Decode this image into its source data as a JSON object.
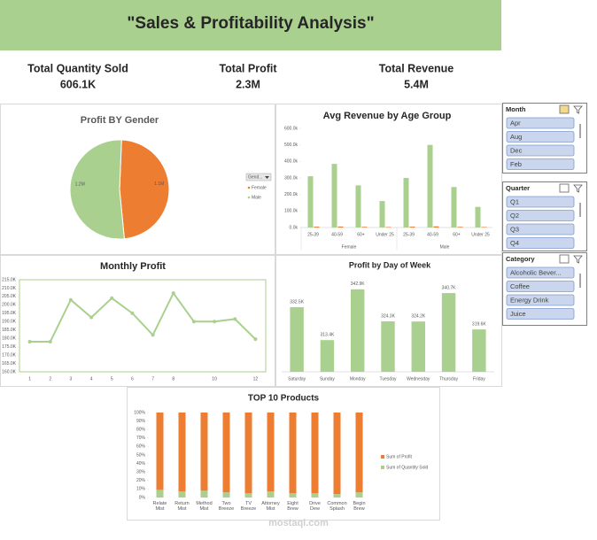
{
  "header": {
    "title": "\"Sales & Profitability Analysis\""
  },
  "kpis": [
    {
      "label": "Total Quantity Sold",
      "value": "606.1K"
    },
    {
      "label": "Total Profit",
      "value": "2.3M"
    },
    {
      "label": "Total Revenue",
      "value": "5.4M"
    }
  ],
  "slicers": [
    {
      "title": "Month",
      "items": [
        "Apr",
        "Aug",
        "Dec",
        "Feb"
      ]
    },
    {
      "title": "Quarter",
      "items": [
        "Q1",
        "Q2",
        "Q3",
        "Q4"
      ]
    },
    {
      "title": "Category",
      "items": [
        "Alcoholic Bever...",
        "Coffee",
        "Energy Drink",
        "Juice"
      ]
    }
  ],
  "watermark": "mostaql.com",
  "chart_data": [
    {
      "type": "pie",
      "title": "Profit BY Gender",
      "legend_title": "Gend...",
      "categories": [
        "Female",
        "Male"
      ],
      "values": [
        1.1,
        1.2
      ],
      "value_labels": [
        "1.1M",
        "1.2M"
      ],
      "colors": [
        "#ed7d31",
        "#a9d08e"
      ],
      "legend": "right"
    },
    {
      "type": "bar",
      "title": "Avg Revenue by Age Group",
      "categories": [
        "25-39",
        "40-59",
        "60+",
        "Under 25",
        "25-39",
        "40-59",
        "60+",
        "Under 25"
      ],
      "groups": [
        "Female",
        "Male"
      ],
      "series": [
        {
          "color": "#a9d08e",
          "values": [
            310,
            385,
            255,
            160,
            300,
            500,
            245,
            125
          ]
        },
        {
          "color": "#ed7d31",
          "values": [
            5,
            6,
            4,
            3,
            5,
            7,
            4,
            3
          ]
        }
      ],
      "ylim": [
        0,
        600
      ],
      "yticks": [
        {
          "value": 0,
          "label": "0.0k"
        },
        {
          "value": 100,
          "label": "100.0k"
        },
        {
          "value": 200,
          "label": "200.0k"
        },
        {
          "value": 300,
          "label": "300.0k"
        },
        {
          "value": 400,
          "label": "400.0k"
        },
        {
          "value": 500,
          "label": "500.0k"
        },
        {
          "value": 600,
          "label": "600.0k"
        }
      ]
    },
    {
      "type": "line",
      "title": "Monthly Profit",
      "x": [
        1,
        2,
        3,
        4,
        5,
        6,
        7,
        8,
        9,
        10,
        11,
        12
      ],
      "values": [
        178,
        178,
        203,
        192.5,
        204,
        195,
        182,
        207,
        190,
        190,
        191.5,
        179.5
      ],
      "color": "#a9d08e",
      "xlim": [
        0.5,
        12.5
      ],
      "xticks": [
        1,
        2,
        3,
        4,
        5,
        6,
        7,
        8,
        10,
        12
      ],
      "ylim": [
        160,
        215
      ],
      "yticks": [
        {
          "value": 160,
          "label": "160.0K"
        },
        {
          "value": 165,
          "label": "165.0K"
        },
        {
          "value": 170,
          "label": "170.0K"
        },
        {
          "value": 175,
          "label": "175.0K"
        },
        {
          "value": 180,
          "label": "180.0K"
        },
        {
          "value": 185,
          "label": "185.0K"
        },
        {
          "value": 190,
          "label": "190.0K"
        },
        {
          "value": 195,
          "label": "195.0K"
        },
        {
          "value": 200,
          "label": "200.0K"
        },
        {
          "value": 205,
          "label": "205.0K"
        },
        {
          "value": 210,
          "label": "210.0K"
        },
        {
          "value": 215,
          "label": "215.0K"
        }
      ]
    },
    {
      "type": "bar",
      "title": "Profit by Day of Week",
      "categories": [
        "Saturday",
        "Sunday",
        "Monday",
        "Tuesday",
        "Wednesday",
        "Thursday",
        "Friday"
      ],
      "values": [
        332.5,
        313.4,
        342.9,
        324.3,
        324.2,
        340.7,
        319.6
      ],
      "value_labels": [
        "332.5K",
        "313.4K",
        "342.9K",
        "324.3K",
        "324.2K",
        "340.7K",
        "319.6K"
      ],
      "color": "#a9d08e",
      "ylim": [
        295,
        350
      ]
    },
    {
      "type": "stacked_bar",
      "title": "TOP 10 Products",
      "categories": [
        "Relate Mist",
        "Return Mist",
        "Method Mist",
        "Two Breeze",
        "TV Breeze",
        "Attorney Mist",
        "Eight Brew",
        "Drive Dew",
        "Common Splash",
        "Begin Brew"
      ],
      "series": [
        {
          "name": "Sum of Quantity Sold",
          "color": "#a9d08e",
          "values": [
            9,
            7,
            8,
            6,
            5,
            7,
            5,
            5,
            4,
            6
          ]
        },
        {
          "name": "Sum of Profit",
          "color": "#ed7d31",
          "values": [
            91,
            93,
            92,
            94,
            95,
            93,
            95,
            95,
            96,
            94
          ]
        }
      ],
      "ylim": [
        0,
        100
      ],
      "yticks": [
        {
          "value": 0,
          "label": "0%"
        },
        {
          "value": 10,
          "label": "10%"
        },
        {
          "value": 20,
          "label": "20%"
        },
        {
          "value": 30,
          "label": "30%"
        },
        {
          "value": 40,
          "label": "40%"
        },
        {
          "value": 50,
          "label": "50%"
        },
        {
          "value": 60,
          "label": "60%"
        },
        {
          "value": 70,
          "label": "70%"
        },
        {
          "value": 80,
          "label": "80%"
        },
        {
          "value": 90,
          "label": "90%"
        },
        {
          "value": 100,
          "label": "100%"
        }
      ],
      "legend": "right"
    }
  ]
}
